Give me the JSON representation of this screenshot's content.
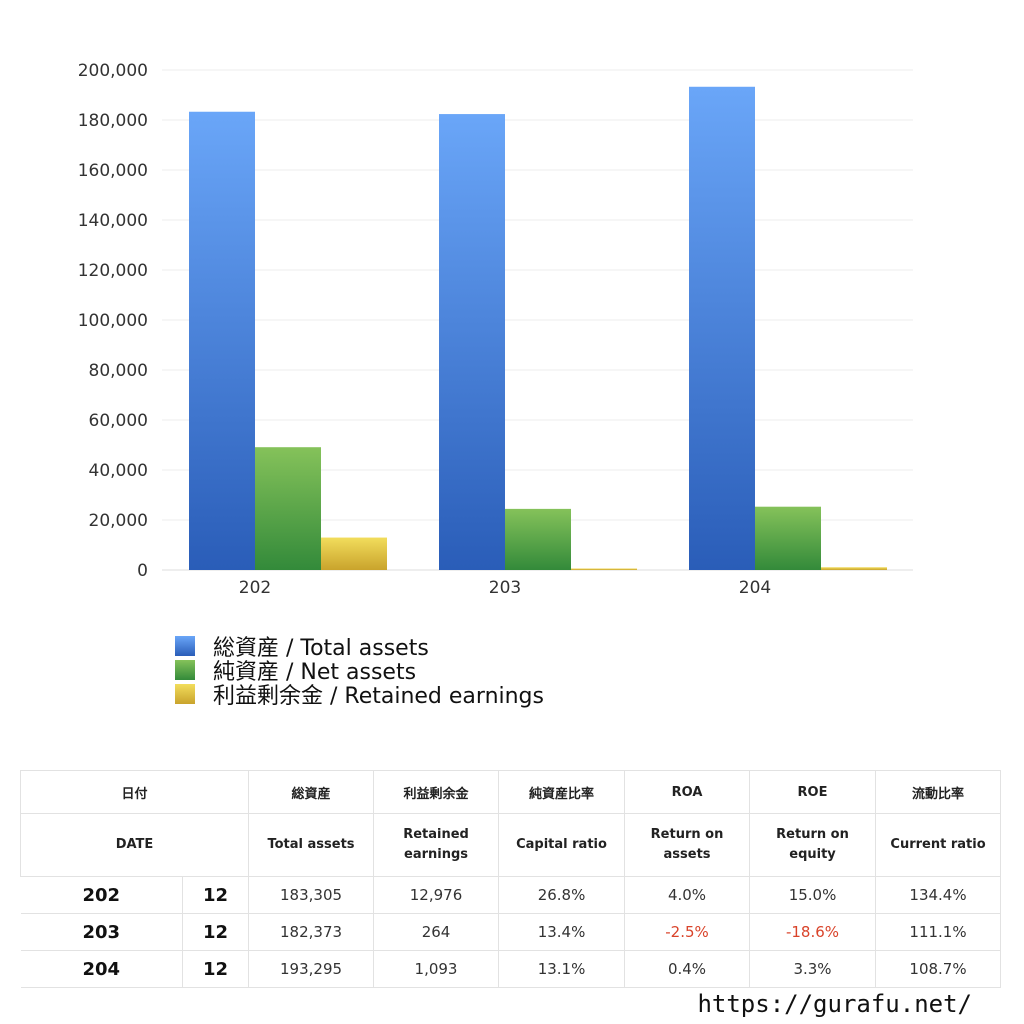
{
  "chart_data": {
    "type": "bar",
    "categories": [
      "202",
      "203",
      "204"
    ],
    "series": [
      {
        "name": "総資産 / Total assets",
        "values": [
          183305,
          182373,
          193295
        ],
        "color_top": "#6aa6f8",
        "color_bottom": "#2a5db8"
      },
      {
        "name": "純資産 / Net assets",
        "values": [
          49120,
          24450,
          25320
        ],
        "color_top": "#85c25a",
        "color_bottom": "#338a3a"
      },
      {
        "name": "利益剰余金 / Retained earnings",
        "values": [
          12976,
          264,
          1093
        ],
        "color_top": "#f2dd5c",
        "color_bottom": "#c9a32c"
      }
    ],
    "ylim": [
      0,
      200000
    ],
    "yticks": [
      "0",
      "20,000",
      "40,000",
      "60,000",
      "80,000",
      "100,000",
      "120,000",
      "140,000",
      "160,000",
      "180,000",
      "200,000"
    ],
    "grid": true,
    "legend_position": "bottom-left"
  },
  "table": {
    "header_jp": [
      "日付",
      "総資産",
      "利益剰余金",
      "純資産比率",
      "ROA",
      "ROE",
      "流動比率"
    ],
    "header_en": [
      "DATE",
      "Total assets",
      "Retained earnings",
      "Capital ratio",
      "Return on assets",
      "Return on equity",
      "Current ratio"
    ],
    "rows": [
      {
        "year": "202",
        "month": "12",
        "total_assets": "183,305",
        "retained": "12,976",
        "capital_ratio": "26.8%",
        "roa": "4.0%",
        "roe": "15.0%",
        "current_ratio": "134.4%"
      },
      {
        "year": "203",
        "month": "12",
        "total_assets": "182,373",
        "retained": "264",
        "capital_ratio": "13.4%",
        "roa": "-2.5%",
        "roe": "-18.6%",
        "current_ratio": "111.1%"
      },
      {
        "year": "204",
        "month": "12",
        "total_assets": "193,295",
        "retained": "1,093",
        "capital_ratio": "13.1%",
        "roa": "0.4%",
        "roe": "3.3%",
        "current_ratio": "108.7%"
      }
    ]
  },
  "footer": {
    "url": "https://gurafu.net/"
  }
}
